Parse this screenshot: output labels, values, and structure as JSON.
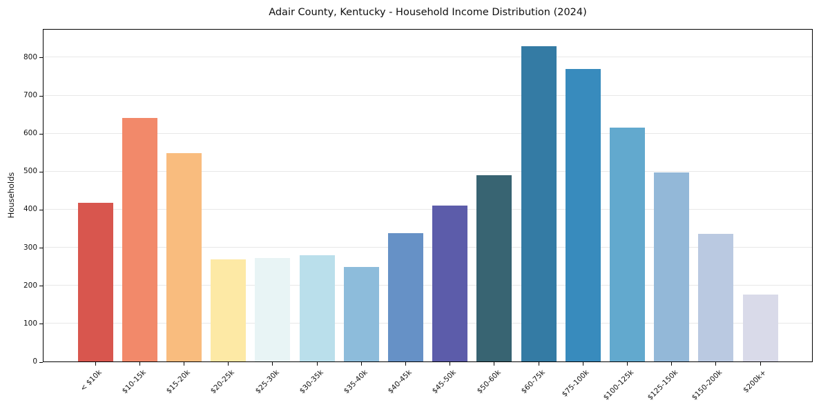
{
  "chart_data": {
    "type": "bar",
    "title": "Adair County, Kentucky - Household Income Distribution (2024)",
    "xlabel": "",
    "ylabel": "Households",
    "categories": [
      "< $10k",
      "$10-15k",
      "$15-20k",
      "$20-25k",
      "$25-30k",
      "$30-35k",
      "$35-40k",
      "$40-45k",
      "$45-50k",
      "$50-60k",
      "$60-75k",
      "$75-100k",
      "$100-125k",
      "$125-150k",
      "$150-200k",
      "$200k+"
    ],
    "values": [
      418,
      640,
      548,
      269,
      272,
      279,
      249,
      337,
      410,
      490,
      828,
      769,
      615,
      497,
      336,
      176
    ],
    "bar_colors": [
      "#d8564e",
      "#f2896a",
      "#f9bc7e",
      "#fde9a5",
      "#e8f4f5",
      "#badfeb",
      "#8dbcdb",
      "#6691c6",
      "#5c5caa",
      "#386472",
      "#347ba4",
      "#388bbd",
      "#62a9ce",
      "#93b8d8",
      "#bac9e1",
      "#d9dae9"
    ],
    "yticks": [
      0,
      100,
      200,
      300,
      400,
      500,
      600,
      700,
      800
    ],
    "ylim": [
      0,
      876
    ],
    "grid": "horizontal",
    "gridline_color": "#e8e8e8",
    "frame_color": "#000000",
    "legend": "none"
  }
}
